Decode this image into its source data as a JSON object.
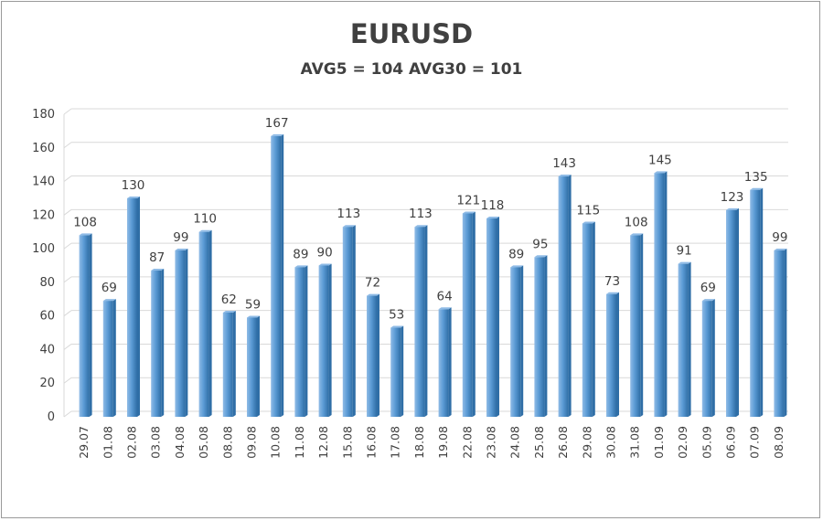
{
  "chart_data": {
    "type": "bar",
    "title": "EURUSD",
    "subtitle": "AVG5 = 104 AVG30 = 101",
    "xlabel": "",
    "ylabel": "",
    "ylim": [
      0,
      180
    ],
    "yticks": [
      0,
      20,
      40,
      60,
      80,
      100,
      120,
      140,
      160,
      180
    ],
    "grid": true,
    "legend": "none",
    "categories": [
      "29.07",
      "01.08",
      "02.08",
      "03.08",
      "04.08",
      "05.08",
      "08.08",
      "09.08",
      "10.08",
      "11.08",
      "12.08",
      "15.08",
      "16.08",
      "17.08",
      "18.08",
      "19.08",
      "22.08",
      "23.08",
      "24.08",
      "25.08",
      "26.08",
      "29.08",
      "30.08",
      "31.08",
      "01.09",
      "02.09",
      "05.09",
      "06.09",
      "07.09",
      "08.09"
    ],
    "values": [
      108,
      69,
      130,
      87,
      99,
      110,
      62,
      59,
      167,
      89,
      90,
      113,
      72,
      53,
      113,
      64,
      121,
      118,
      89,
      95,
      143,
      115,
      73,
      108,
      145,
      91,
      69,
      123,
      135,
      99
    ],
    "colors": {
      "bar_fill": "#5b9bd5",
      "bar_light": "#8fbbe6",
      "bar_dark": "#2f6ea6",
      "grid": "#d9d9d9",
      "text": "#404040"
    }
  }
}
